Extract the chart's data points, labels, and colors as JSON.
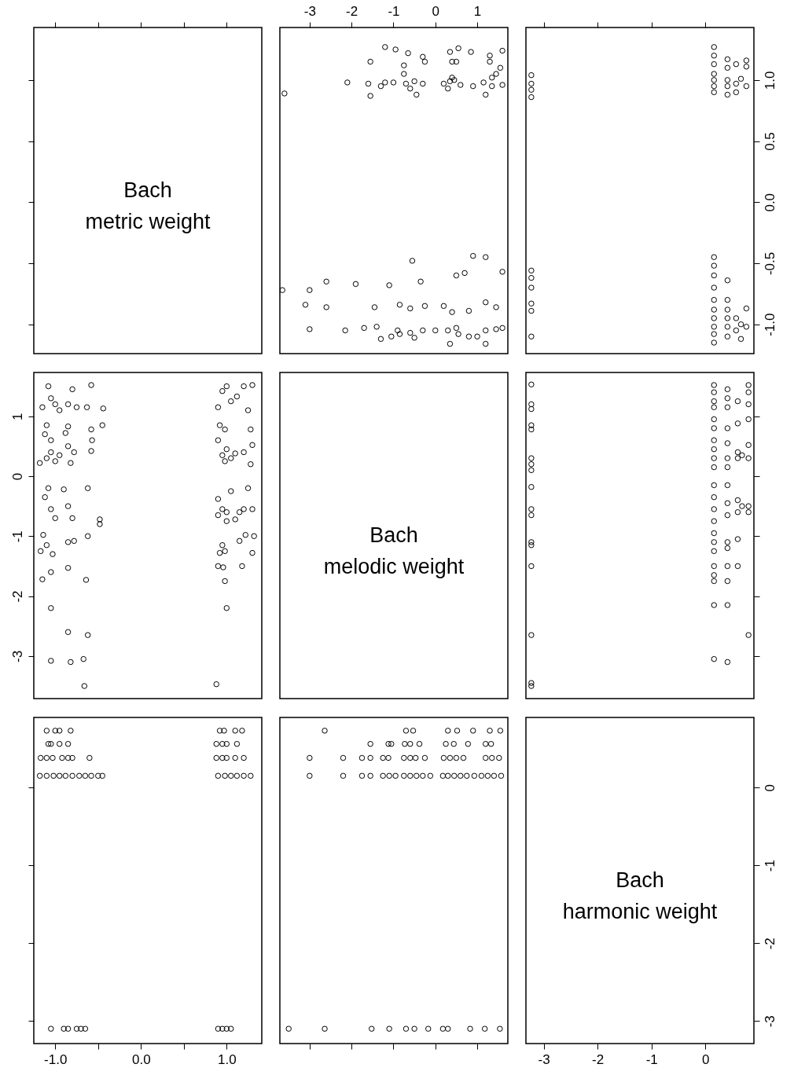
{
  "chart_data": [
    {
      "type": "scatter",
      "title": "Bach\nmetric weight",
      "xlim": [
        -1.25,
        1.41
      ],
      "xticks": [
        -1,
        -0.5,
        0,
        0.5,
        1
      ],
      "ylim": [
        -1.24,
        1.43
      ],
      "yticks": [
        -1,
        -0.5,
        0,
        0.5,
        1
      ],
      "tick_labels": false
    },
    {
      "type": "scatter",
      "marker": "circle",
      "xlim": [
        -3.71,
        1.73
      ],
      "xticks": [
        -3,
        -2,
        -1,
        0,
        1
      ],
      "ylim": [
        -1.24,
        1.43
      ],
      "tick_labels": "x",
      "series": [
        {
          "color": "#000000",
          "x": [
            -3.6,
            -2.1,
            -1.6,
            -1.55,
            -1.3,
            -1.2,
            -1.0,
            -0.7,
            -0.6,
            -0.5,
            -0.3,
            0.2,
            0.3,
            0.35,
            0.45,
            0.6,
            0.9,
            1.15,
            1.35,
            1.6,
            1.2,
            -0.45,
            -1.2,
            -0.95,
            -0.65,
            -0.3,
            0.35,
            0.55,
            0.85,
            1.3,
            1.6,
            -1.55,
            -0.75,
            -0.25,
            0.4,
            0.5,
            1.3,
            1.55,
            -0.75,
            1.45,
            0.4,
            1.35,
            -3.65,
            -3.0,
            -2.6,
            -1.9,
            -1.1,
            -0.35,
            0.5,
            0.7,
            1.2,
            0.9,
            -0.55,
            1.6,
            -3.1,
            -2.6,
            -1.45,
            -0.85,
            -0.6,
            -0.25,
            0.2,
            0.4,
            0.8,
            1.2,
            1.45,
            -3.0,
            -2.15,
            -1.7,
            -1.4,
            -1.05,
            -0.9,
            -0.6,
            -0.3,
            0.0,
            0.3,
            0.5,
            0.8,
            1.0,
            1.2,
            1.45,
            1.6,
            -1.3,
            -0.5,
            0.35,
            1.2,
            -0.85,
            0.55
          ],
          "values": [
            0.89,
            0.98,
            0.97,
            0.87,
            0.95,
            0.98,
            0.98,
            0.97,
            0.93,
            0.99,
            0.97,
            0.97,
            0.93,
            0.99,
            1.0,
            0.96,
            0.95,
            0.98,
            0.95,
            0.96,
            0.88,
            0.88,
            1.27,
            1.25,
            1.22,
            1.19,
            1.23,
            1.26,
            1.23,
            1.2,
            1.24,
            1.15,
            1.12,
            1.15,
            1.15,
            1.15,
            1.15,
            1.1,
            1.05,
            1.05,
            1.02,
            1.02,
            -0.72,
            -0.72,
            -0.65,
            -0.67,
            -0.68,
            -0.65,
            -0.6,
            -0.58,
            -0.45,
            -0.44,
            -0.48,
            -0.57,
            -0.84,
            -0.86,
            -0.86,
            -0.84,
            -0.87,
            -0.85,
            -0.85,
            -0.9,
            -0.89,
            -0.82,
            -0.86,
            -1.04,
            -1.05,
            -1.03,
            -1.02,
            -1.1,
            -1.05,
            -1.07,
            -1.05,
            -1.05,
            -1.05,
            -1.03,
            -1.1,
            -1.1,
            -1.05,
            -1.04,
            -1.03,
            -1.12,
            -1.11,
            -1.16,
            -1.16,
            -1.08,
            -1.08
          ]
        }
      ]
    },
    {
      "type": "scatter",
      "marker": "circle",
      "xlim": [
        -3.33,
        0.9
      ],
      "xticks": [
        -3,
        -2,
        -1,
        0
      ],
      "ylim": [
        -1.24,
        1.43
      ],
      "yticks": [
        {
          "value": -1,
          "label": "-1.0"
        },
        {
          "value": -0.5,
          "label": "-0.5"
        },
        {
          "value": 0,
          "label": "0.0"
        },
        {
          "value": 0.5,
          "label": "0.5"
        },
        {
          "value": 1,
          "label": "1.0"
        }
      ],
      "tick_labels": "y",
      "series": [
        {
          "color": "#000000",
          "x": [
            0.16,
            0.16,
            0.16,
            0.16,
            0.16,
            0.16,
            0.16,
            0.41,
            0.41,
            0.41,
            0.41,
            0.41,
            0.57,
            0.57,
            0.57,
            0.76,
            0.76,
            0.66,
            0.76,
            0.16,
            0.16,
            0.16,
            0.16,
            0.16,
            0.16,
            0.16,
            0.16,
            0.16,
            0.16,
            0.41,
            0.41,
            0.41,
            0.41,
            0.41,
            0.41,
            0.57,
            0.57,
            0.66,
            0.66,
            0.76,
            0.76,
            -3.23,
            -3.23,
            -3.23,
            -3.23,
            -3.23,
            -3.23,
            -3.23,
            -3.23,
            -3.23,
            -3.23
          ],
          "values": [
            1.27,
            1.2,
            1.13,
            1.05,
            1.0,
            0.95,
            0.9,
            1.17,
            1.1,
            1.0,
            0.95,
            0.88,
            1.13,
            0.97,
            0.9,
            1.16,
            1.11,
            1.01,
            0.95,
            -0.45,
            -0.52,
            -0.6,
            -0.7,
            -0.8,
            -0.88,
            -0.95,
            -1.02,
            -1.08,
            -1.15,
            -0.64,
            -0.8,
            -0.88,
            -0.95,
            -1.02,
            -1.1,
            -0.95,
            -1.05,
            -1.0,
            -1.12,
            -0.87,
            -1.02,
            1.04,
            0.97,
            0.92,
            0.86,
            -0.56,
            -0.62,
            -0.7,
            -0.83,
            -0.89,
            -1.1
          ]
        }
      ]
    },
    {
      "type": "scatter",
      "marker": "circle",
      "xlim": [
        -1.25,
        1.41
      ],
      "ylim": [
        -3.71,
        1.73
      ],
      "yticks": [
        -3,
        -2,
        -1,
        0,
        1
      ],
      "tick_labels": "y",
      "series": [
        {
          "color": "#000000",
          "x": [
            -1.15,
            -1.08,
            -1.05,
            -1.0,
            -0.95,
            -0.85,
            -0.8,
            -0.75,
            -0.58,
            -0.63,
            -0.44,
            -1.1,
            -1.12,
            -1.05,
            -0.88,
            -0.85,
            -0.58,
            -0.57,
            -0.45,
            -0.58,
            -1.18,
            -1.1,
            -1.05,
            -1.0,
            -0.95,
            -0.85,
            -0.82,
            -0.78,
            -1.12,
            -1.08,
            -1.05,
            -1.0,
            -0.9,
            -0.85,
            -0.8,
            -0.62,
            -0.48,
            -0.48,
            -1.14,
            -1.1,
            -1.17,
            -1.03,
            -0.85,
            -0.78,
            -0.62,
            -1.15,
            -1.05,
            -0.85,
            -0.64,
            -1.05,
            -0.85,
            -0.62,
            -1.05,
            -0.82,
            -0.67,
            -0.66,
            0.9,
            0.95,
            1.0,
            1.05,
            1.12,
            1.2,
            1.25,
            1.3,
            0.92,
            0.98,
            1.28,
            0.9,
            0.95,
            0.98,
            1.0,
            1.05,
            1.1,
            1.2,
            1.3,
            1.28,
            0.9,
            0.95,
            1.0,
            1.05,
            1.15,
            1.2,
            1.25,
            1.3,
            0.9,
            1.0,
            1.1,
            0.95,
            0.92,
            0.98,
            1.15,
            1.22,
            1.32,
            1.3,
            0.9,
            0.96,
            1.18,
            0.98,
            1.0,
            0.88
          ],
          "values": [
            1.15,
            1.5,
            1.3,
            1.2,
            1.1,
            1.2,
            1.45,
            1.15,
            1.52,
            1.15,
            1.13,
            0.85,
            0.7,
            0.6,
            0.72,
            0.83,
            0.78,
            0.6,
            0.85,
            0.42,
            0.22,
            0.3,
            0.4,
            0.25,
            0.35,
            0.5,
            0.22,
            0.4,
            -0.35,
            -0.2,
            -0.55,
            -0.7,
            -0.22,
            -0.5,
            -0.7,
            -0.2,
            -0.72,
            -0.8,
            -0.98,
            -1.15,
            -1.25,
            -1.3,
            -1.1,
            -1.08,
            -1.0,
            -1.72,
            -1.6,
            -1.53,
            -1.73,
            -2.2,
            -2.6,
            -2.65,
            -3.08,
            -3.1,
            -3.05,
            -3.5,
            1.15,
            1.42,
            1.5,
            1.25,
            1.33,
            1.5,
            1.1,
            1.52,
            0.85,
            0.78,
            0.78,
            0.6,
            0.35,
            0.25,
            0.45,
            0.3,
            0.38,
            0.4,
            0.52,
            0.2,
            -0.38,
            -0.55,
            -0.6,
            -0.25,
            -0.6,
            -0.55,
            -0.2,
            -0.55,
            -0.65,
            -0.75,
            -0.72,
            -1.15,
            -1.28,
            -1.25,
            -1.08,
            -0.98,
            -1.0,
            -1.28,
            -1.5,
            -1.52,
            -1.5,
            -1.75,
            -2.2,
            -3.47
          ]
        }
      ]
    },
    {
      "type": "other",
      "title": "Bach\nmelodic weight"
    },
    {
      "type": "scatter",
      "marker": "circle",
      "xlim": [
        -3.33,
        0.9
      ],
      "ylim": [
        -3.71,
        1.73
      ],
      "yticks": [
        -3,
        -2,
        -1,
        0,
        1
      ],
      "tick_labels": false,
      "series": [
        {
          "color": "#000000",
          "x": [
            -3.23,
            -3.23,
            -3.23,
            -3.23,
            -3.23,
            -3.23,
            -3.23,
            -3.23,
            -3.23,
            -3.23,
            -3.23,
            -3.23,
            -3.23,
            -3.23,
            -3.23,
            -3.23,
            -3.23,
            0.16,
            0.16,
            0.16,
            0.16,
            0.16,
            0.16,
            0.16,
            0.16,
            0.16,
            0.16,
            0.16,
            0.16,
            0.16,
            0.16,
            0.16,
            0.16,
            0.16,
            0.16,
            0.16,
            0.16,
            0.16,
            0.16,
            0.41,
            0.41,
            0.41,
            0.41,
            0.41,
            0.41,
            0.41,
            0.41,
            0.41,
            0.41,
            0.41,
            0.41,
            0.41,
            0.41,
            0.41,
            0.41,
            0.6,
            0.6,
            0.6,
            0.6,
            0.6,
            0.6,
            0.6,
            0.6,
            0.68,
            0.68,
            0.8,
            0.8,
            0.8,
            0.8,
            0.8,
            0.8,
            0.8,
            0.8,
            0.8
          ],
          "values": [
            1.53,
            1.2,
            1.12,
            0.85,
            0.78,
            0.3,
            0.2,
            0.1,
            -0.18,
            -0.55,
            -0.65,
            -1.1,
            -1.15,
            -1.5,
            -2.65,
            -3.45,
            -3.5,
            1.52,
            1.4,
            1.25,
            1.15,
            0.95,
            0.8,
            0.6,
            0.45,
            0.3,
            0.15,
            -0.15,
            -0.35,
            -0.55,
            -0.75,
            -0.95,
            -1.1,
            -1.25,
            -1.5,
            -1.65,
            -1.75,
            -2.15,
            -3.05,
            1.45,
            1.3,
            1.15,
            0.8,
            0.55,
            0.3,
            0.15,
            -0.15,
            -0.45,
            -0.65,
            -1.1,
            -1.2,
            -1.5,
            -1.75,
            -2.15,
            -3.1,
            1.25,
            0.88,
            0.4,
            0.3,
            -0.4,
            -0.6,
            -1.05,
            -1.5,
            0.35,
            -0.5,
            1.52,
            1.4,
            1.2,
            0.95,
            0.52,
            0.3,
            -0.5,
            -0.6,
            -2.65
          ]
        }
      ]
    },
    {
      "type": "scatter",
      "marker": "circle",
      "xlim": [
        -1.25,
        1.41
      ],
      "xticks": [
        {
          "value": -1,
          "label": "-1.0"
        },
        {
          "value": -0.5,
          "label": null
        },
        {
          "value": 0,
          "label": "0.0"
        },
        {
          "value": 0.5,
          "label": null
        },
        {
          "value": 1,
          "label": "1.0"
        }
      ],
      "ylim": [
        -3.29,
        0.9
      ],
      "yticks": [
        -3,
        -2,
        -1,
        0
      ],
      "tick_labels": "x",
      "series": [
        {
          "color": "#000000",
          "x": [
            -1.18,
            -1.1,
            -1.02,
            -0.95,
            -0.88,
            -0.8,
            -0.72,
            -0.65,
            -0.58,
            -0.5,
            -0.45,
            0.9,
            0.98,
            1.05,
            1.12,
            1.2,
            1.28,
            -1.17,
            -1.1,
            -1.03,
            -0.92,
            -0.85,
            -0.8,
            -0.6,
            0.88,
            0.95,
            1.0,
            1.1,
            1.2,
            -1.08,
            -1.05,
            -0.95,
            -0.85,
            0.88,
            0.95,
            1.0,
            1.12,
            -1.1,
            -1.0,
            -0.95,
            -0.82,
            0.92,
            0.97,
            1.1,
            1.18,
            -1.05,
            -0.9,
            -0.85,
            -0.75,
            -0.7,
            -0.65,
            0.9,
            0.95,
            1.0,
            1.05
          ],
          "values": [
            0.15,
            0.15,
            0.15,
            0.15,
            0.15,
            0.15,
            0.15,
            0.15,
            0.15,
            0.15,
            0.15,
            0.15,
            0.15,
            0.15,
            0.15,
            0.15,
            0.15,
            0.38,
            0.38,
            0.38,
            0.38,
            0.38,
            0.38,
            0.38,
            0.38,
            0.38,
            0.38,
            0.38,
            0.38,
            0.56,
            0.56,
            0.56,
            0.56,
            0.56,
            0.56,
            0.56,
            0.56,
            0.73,
            0.73,
            0.73,
            0.73,
            0.73,
            0.73,
            0.73,
            0.73,
            -3.1,
            -3.1,
            -3.1,
            -3.1,
            -3.1,
            -3.1,
            -3.1,
            -3.1,
            -3.1,
            -3.1
          ]
        }
      ]
    },
    {
      "type": "scatter",
      "marker": "circle",
      "xlim": [
        -3.71,
        1.73
      ],
      "xticks": [
        -3,
        -2,
        -1,
        0,
        1
      ],
      "ylim": [
        -3.29,
        0.9
      ],
      "tick_labels": false,
      "series": [
        {
          "color": "#000000",
          "x": [
            -3.0,
            -2.2,
            -1.75,
            -1.55,
            -1.25,
            -1.1,
            -0.95,
            -0.75,
            -0.6,
            -0.45,
            -0.3,
            -0.12,
            0.18,
            0.3,
            0.45,
            0.6,
            0.75,
            0.93,
            1.1,
            1.25,
            1.4,
            1.57,
            -3.0,
            -2.2,
            -1.75,
            -1.55,
            -1.25,
            -1.12,
            -0.75,
            -0.6,
            -0.47,
            -0.25,
            0.2,
            0.35,
            0.5,
            0.67,
            1.2,
            1.35,
            1.52,
            -1.55,
            -1.12,
            -1.05,
            -0.73,
            -0.6,
            -0.38,
            0.25,
            0.44,
            0.78,
            1.2,
            1.33,
            -2.64,
            -0.7,
            -0.53,
            0.3,
            0.52,
            0.9,
            1.3,
            1.55,
            -3.5,
            -2.64,
            -1.52,
            -1.1,
            -0.7,
            -0.5,
            -0.17,
            0.18,
            0.3,
            0.83,
            1.18,
            1.54
          ],
          "values": [
            0.15,
            0.15,
            0.15,
            0.15,
            0.15,
            0.15,
            0.15,
            0.15,
            0.15,
            0.15,
            0.15,
            0.15,
            0.15,
            0.15,
            0.15,
            0.15,
            0.15,
            0.15,
            0.15,
            0.15,
            0.15,
            0.15,
            0.38,
            0.38,
            0.38,
            0.38,
            0.38,
            0.38,
            0.38,
            0.38,
            0.38,
            0.38,
            0.38,
            0.38,
            0.38,
            0.38,
            0.38,
            0.38,
            0.38,
            0.56,
            0.56,
            0.56,
            0.56,
            0.56,
            0.56,
            0.56,
            0.56,
            0.56,
            0.56,
            0.56,
            0.73,
            0.73,
            0.73,
            0.73,
            0.73,
            0.73,
            0.73,
            0.73,
            -3.1,
            -3.1,
            -3.1,
            -3.1,
            -3.1,
            -3.1,
            -3.1,
            -3.1,
            -3.1,
            -3.1,
            -3.1,
            -3.1
          ]
        }
      ]
    },
    {
      "type": "scatter",
      "title": "Bach\nharmonic weight",
      "xlim": [
        -3.33,
        0.9
      ],
      "xticks": [
        -3,
        -2,
        -1,
        0
      ],
      "ylim": [
        -3.29,
        0.9
      ],
      "yticks": [
        -3,
        -2,
        -1,
        0
      ]
    }
  ]
}
